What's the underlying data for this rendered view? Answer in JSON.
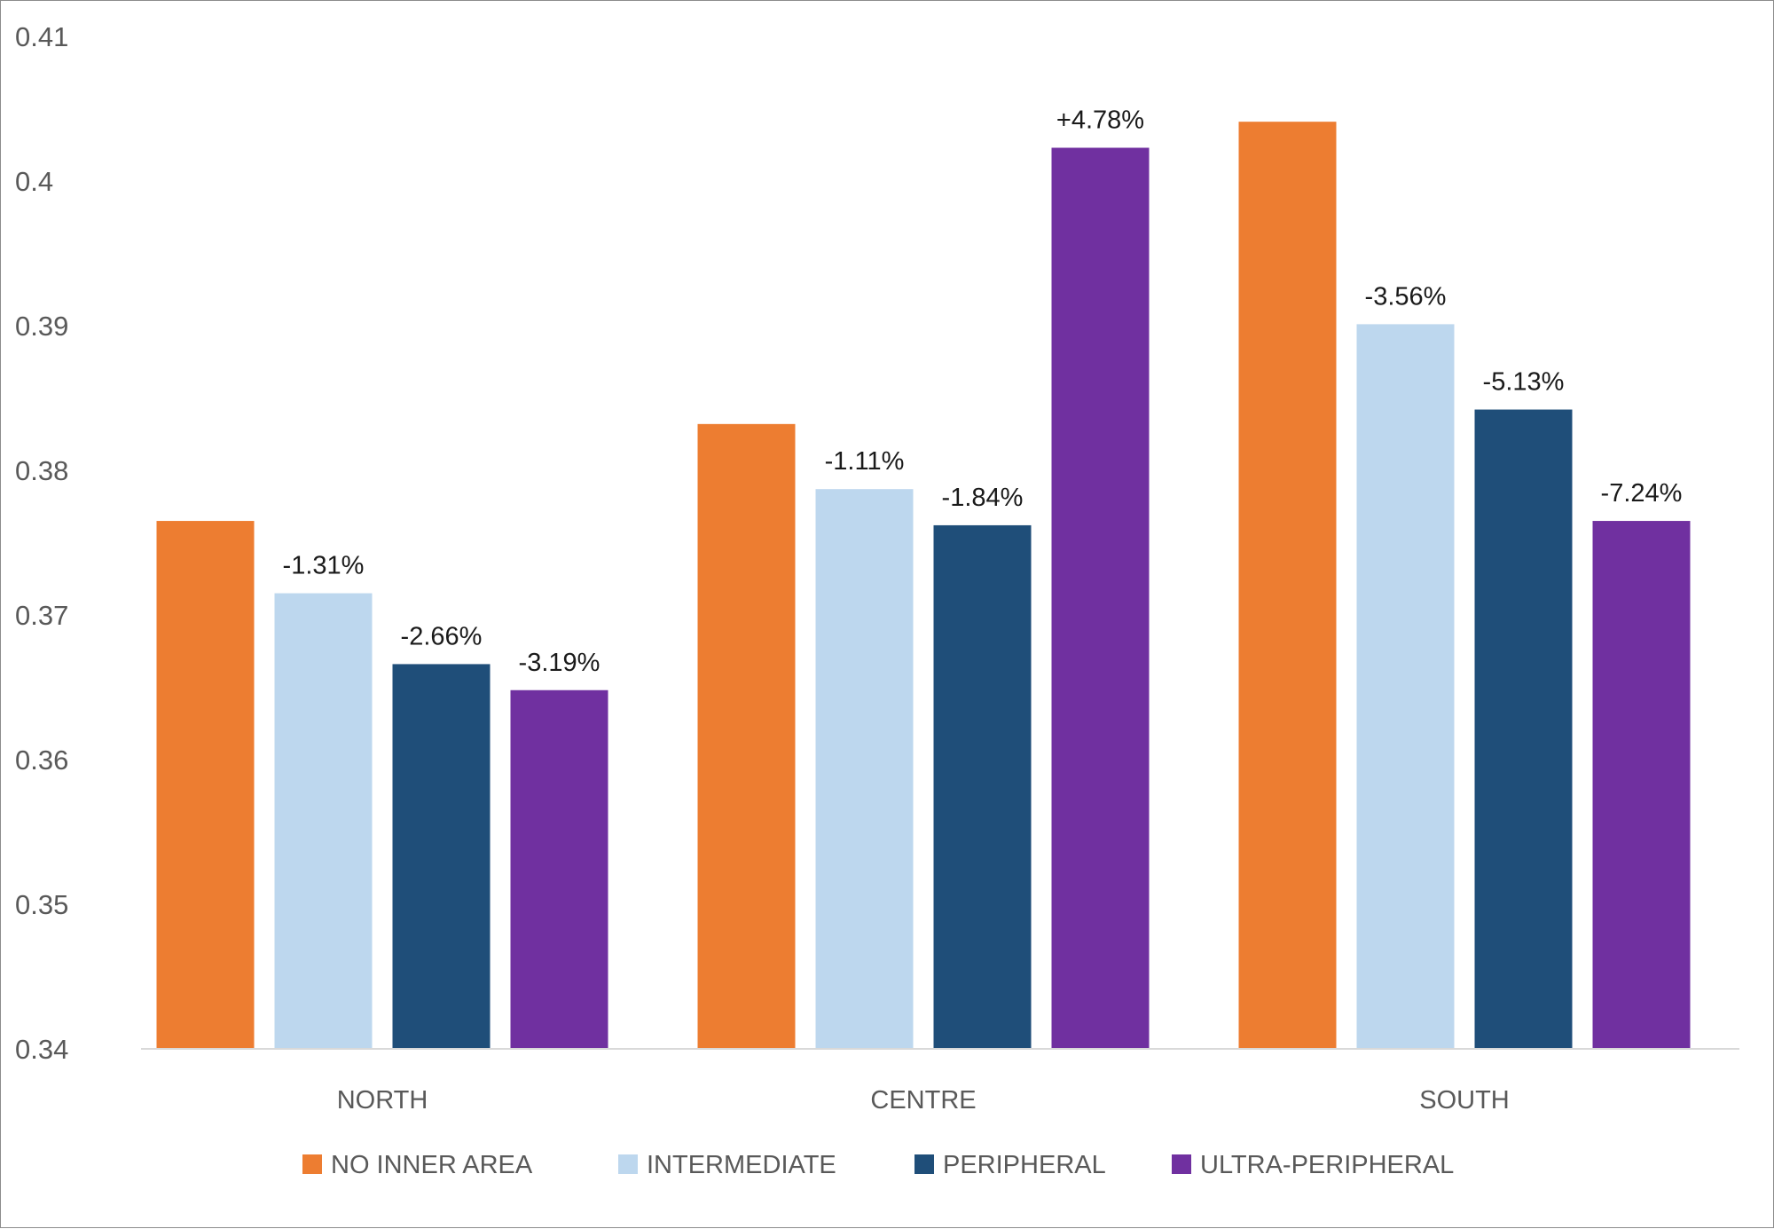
{
  "chart_data": {
    "type": "bar",
    "categories": [
      "NORTH",
      "CENTRE",
      "SOUTH"
    ],
    "series": [
      {
        "name": "NO INNER AREA",
        "color": "#ED7D31",
        "values": [
          0.3765,
          0.3832,
          0.4041
        ],
        "labels": [
          "",
          "",
          ""
        ]
      },
      {
        "name": "INTERMEDIATE",
        "color": "#BDD7EE",
        "values": [
          0.3715,
          0.3787,
          0.3901
        ],
        "labels": [
          "-1.31%",
          "-1.11%",
          "-3.56%"
        ]
      },
      {
        "name": "PERIPHERAL",
        "color": "#1F4E79",
        "values": [
          0.3666,
          0.3762,
          0.3842
        ],
        "labels": [
          "-2.66%",
          "-1.84%",
          "-5.13%"
        ]
      },
      {
        "name": "ULTRA-PERIPHERAL",
        "color": "#7030A0",
        "values": [
          0.3648,
          0.4023,
          0.3765
        ],
        "labels": [
          "-3.19%",
          "+4.78%",
          "-7.24%"
        ]
      }
    ],
    "label_colors": {
      "default": "#1a1a1a",
      "positive": "#E03C31"
    },
    "yticks": [
      "0.34",
      "0.35",
      "0.36",
      "0.37",
      "0.38",
      "0.39",
      "0.4",
      "0.41"
    ],
    "ylim": [
      0.34,
      0.41
    ],
    "grid": false,
    "legend_position": "bottom",
    "title": "",
    "xlabel": "",
    "ylabel": ""
  }
}
